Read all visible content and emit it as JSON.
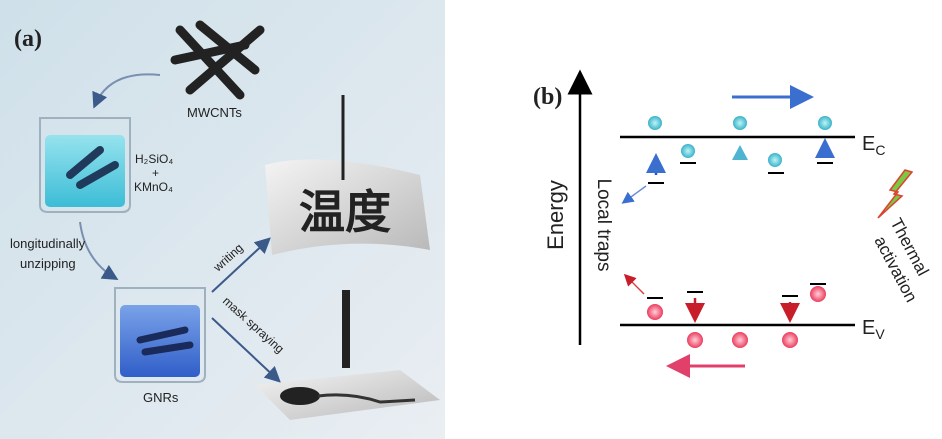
{
  "panel_a": {
    "label": "(a)",
    "mwcnts": "MWCNTs",
    "reagent_1": "H₂SiO₄",
    "plus": "+",
    "reagent_2": "KMnO₄",
    "process": [
      "longitudinally",
      "unzipping"
    ],
    "gnrs": "GNRs",
    "writing": "writing",
    "mask_spraying": "mask spraying",
    "calligraphy": "温度"
  },
  "panel_b": {
    "label": "(b)",
    "y_axis": "Energy",
    "local_traps": "Local traps",
    "conduction_band": {
      "symbol": "E",
      "subscript": "C"
    },
    "valence_band": {
      "symbol": "E",
      "subscript": "V"
    },
    "thermal_activation": [
      "Thermal",
      "activation"
    ]
  }
}
